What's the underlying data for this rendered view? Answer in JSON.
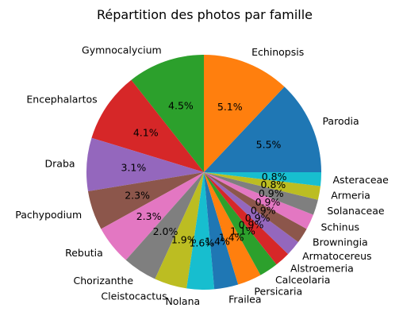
{
  "chart_data": {
    "type": "pie",
    "title": "Répartition des photos par famille",
    "slices": [
      {
        "label": "Parodia",
        "value": 5.5,
        "pct_label": "5.5%",
        "color": "#1f77b4"
      },
      {
        "label": "Echinopsis",
        "value": 5.1,
        "pct_label": "5.1%",
        "color": "#ff7f0e"
      },
      {
        "label": "Gymnocalycium",
        "value": 4.5,
        "pct_label": "4.5%",
        "color": "#2ca02c"
      },
      {
        "label": "Encephalartos",
        "value": 4.1,
        "pct_label": "4.1%",
        "color": "#d62728"
      },
      {
        "label": "Draba",
        "value": 3.1,
        "pct_label": "3.1%",
        "color": "#9467bd"
      },
      {
        "label": "Pachypodium",
        "value": 2.3,
        "pct_label": "2.3%",
        "color": "#8c564b"
      },
      {
        "label": "Rebutia",
        "value": 2.3,
        "pct_label": "2.3%",
        "color": "#e377c2"
      },
      {
        "label": "Chorizanthe",
        "value": 2.0,
        "pct_label": "2.0%",
        "color": "#7f7f7f"
      },
      {
        "label": "Cleistocactus",
        "value": 1.9,
        "pct_label": "1.9%",
        "color": "#bcbd22"
      },
      {
        "label": "Nolana",
        "value": 1.6,
        "pct_label": "1.6%",
        "color": "#17becf"
      },
      {
        "label": "Frailea",
        "value": 1.4,
        "pct_label": "1.4%",
        "color": "#1f77b4"
      },
      {
        "label": "Persicaria",
        "value": 1.4,
        "pct_label": "1.4%",
        "color": "#ff7f0e"
      },
      {
        "label": "Calceolaria",
        "value": 1.1,
        "pct_label": "1.1%",
        "color": "#2ca02c"
      },
      {
        "label": "Alstroemeria",
        "value": 0.9,
        "pct_label": "0.9%",
        "color": "#d62728"
      },
      {
        "label": "Armatocereus",
        "value": 0.9,
        "pct_label": "0.9%",
        "color": "#9467bd"
      },
      {
        "label": "Browningia",
        "value": 0.9,
        "pct_label": "0.9%",
        "color": "#8c564b"
      },
      {
        "label": "Schinus",
        "value": 0.9,
        "pct_label": "0.9%",
        "color": "#e377c2"
      },
      {
        "label": "Solanaceae",
        "value": 0.9,
        "pct_label": "0.9%",
        "color": "#7f7f7f"
      },
      {
        "label": "Armeria",
        "value": 0.8,
        "pct_label": "0.8%",
        "color": "#bcbd22"
      },
      {
        "label": "Asteraceae",
        "value": 0.8,
        "pct_label": "0.8%",
        "color": "#17becf"
      }
    ]
  }
}
